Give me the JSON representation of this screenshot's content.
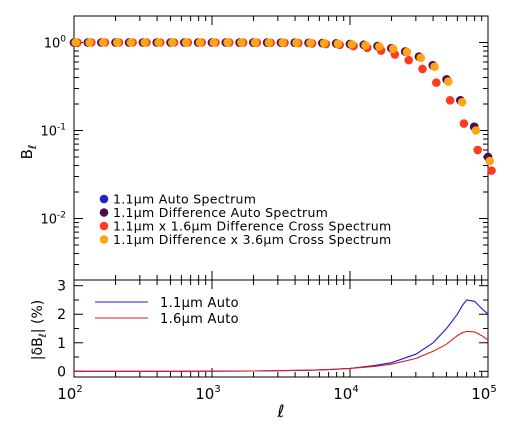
{
  "chart_data": [
    {
      "type": "scatter",
      "title": "",
      "xlabel": "",
      "ylabel": "B",
      "ylabel_subscript": "ℓ",
      "x_scale": "log",
      "y_scale": "log",
      "xlim": [
        100,
        100000
      ],
      "ylim": [
        0.002,
        2
      ],
      "grid": false,
      "legend_position": "bottom-left",
      "y_ticks": [
        {
          "value": 1,
          "base": "10",
          "exp": "0"
        },
        {
          "value": 0.1,
          "base": "10",
          "exp": "-1"
        },
        {
          "value": 0.01,
          "base": "10",
          "exp": "-2"
        }
      ],
      "x_points": [
        100,
        126,
        158,
        200,
        251,
        316,
        398,
        501,
        631,
        794,
        1000,
        1259,
        1585,
        1995,
        2512,
        3162,
        3981,
        5012,
        6310,
        7943,
        10000,
        12589,
        15849,
        19953,
        25119,
        31623,
        39811,
        50119,
        63096,
        79433,
        100000
      ],
      "series": [
        {
          "name": "1.1μm Auto Spectrum",
          "color": "#1f22c8",
          "offset": 0,
          "values": [
            1.0,
            1.0,
            1.0,
            1.0,
            1.0,
            1.0,
            1.0,
            1.0,
            1.0,
            1.0,
            1.0,
            1.0,
            0.999,
            0.999,
            0.998,
            0.996,
            0.994,
            0.99,
            0.985,
            0.975,
            0.96,
            0.94,
            0.91,
            0.86,
            0.79,
            0.69,
            0.55,
            0.38,
            0.22,
            0.11,
            0.05
          ]
        },
        {
          "name": "1.1μm Difference Auto Spectrum",
          "color": "#4a1048",
          "offset": 0,
          "values": [
            1.0,
            1.0,
            1.0,
            1.0,
            1.0,
            1.0,
            1.0,
            1.0,
            1.0,
            1.0,
            1.0,
            1.0,
            0.999,
            0.999,
            0.998,
            0.996,
            0.994,
            0.99,
            0.985,
            0.975,
            0.96,
            0.94,
            0.91,
            0.86,
            0.79,
            0.69,
            0.55,
            0.38,
            0.22,
            0.11,
            0.05
          ]
        },
        {
          "name": "1.1μm x 1.6μm Difference Cross Spectrum",
          "color": "#ff3b1f",
          "offset": 0.5,
          "values": [
            1.0,
            1.0,
            1.0,
            1.0,
            1.0,
            1.0,
            1.0,
            1.0,
            1.0,
            1.0,
            1.0,
            0.999,
            0.998,
            0.996,
            0.993,
            0.99,
            0.985,
            0.975,
            0.96,
            0.94,
            0.91,
            0.87,
            0.81,
            0.73,
            0.63,
            0.5,
            0.35,
            0.22,
            0.12,
            0.06,
            0.035
          ]
        },
        {
          "name": "1.1μm Difference x 3.6μm Cross Spectrum",
          "color": "#ffa514",
          "offset": 0.25,
          "values": [
            1.0,
            1.0,
            1.0,
            1.0,
            1.0,
            1.0,
            1.0,
            1.0,
            1.0,
            1.0,
            1.0,
            1.0,
            0.999,
            0.998,
            0.997,
            0.995,
            0.992,
            0.988,
            0.982,
            0.97,
            0.955,
            0.93,
            0.9,
            0.85,
            0.78,
            0.67,
            0.53,
            0.36,
            0.21,
            0.1,
            0.045
          ]
        }
      ]
    },
    {
      "type": "line",
      "title": "",
      "xlabel": "ℓ",
      "ylabel": "|δB",
      "ylabel_subscript": "ℓ",
      "ylabel_suffix": "| (%)",
      "x_scale": "log",
      "y_scale": "linear",
      "xlim": [
        100,
        100000
      ],
      "ylim": [
        -0.2,
        3.2
      ],
      "grid": false,
      "legend_position": "top-left",
      "y_ticks": [
        "0",
        "1",
        "2",
        "3"
      ],
      "x_ticks": [
        {
          "value": 100,
          "base": "10",
          "exp": "2"
        },
        {
          "value": 1000,
          "base": "10",
          "exp": "3"
        },
        {
          "value": 10000,
          "base": "10",
          "exp": "4"
        },
        {
          "value": 100000,
          "base": "10",
          "exp": "5"
        }
      ],
      "x_points": [
        100,
        200,
        500,
        1000,
        2000,
        3000,
        5000,
        7000,
        10000,
        15000,
        20000,
        30000,
        40000,
        50000,
        60000,
        65000,
        70000,
        80000,
        90000,
        100000
      ],
      "series": [
        {
          "name": "1.1μm Auto",
          "color": "#1c1cdc",
          "values": [
            0,
            0,
            0,
            0.005,
            0.01,
            0.02,
            0.04,
            0.06,
            0.1,
            0.2,
            0.3,
            0.6,
            1.0,
            1.5,
            2.0,
            2.3,
            2.5,
            2.45,
            2.2,
            2.0
          ]
        },
        {
          "name": "1.6μm Auto",
          "color": "#dc1c1c",
          "values": [
            0,
            0,
            0,
            0.005,
            0.01,
            0.02,
            0.04,
            0.06,
            0.1,
            0.17,
            0.25,
            0.45,
            0.7,
            0.95,
            1.25,
            1.35,
            1.4,
            1.38,
            1.25,
            1.1
          ]
        }
      ]
    }
  ]
}
